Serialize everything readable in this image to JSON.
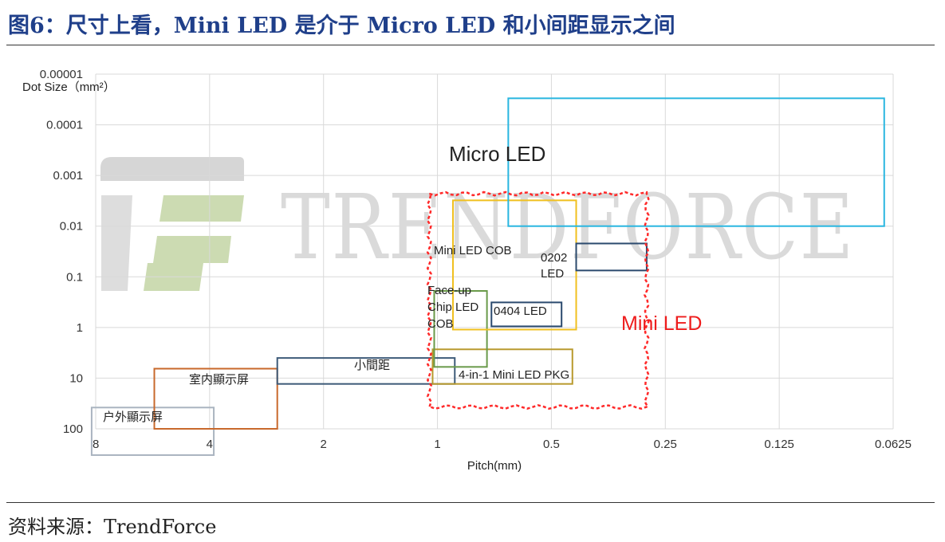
{
  "figure": {
    "title": "图6：尺寸上看，Mini LED 是介于 Micro LED 和小间距显示之间",
    "source": "资料来源：TrendForce"
  },
  "watermark": {
    "text": "TRENDFORCE"
  },
  "chart_data": {
    "type": "range-boxes",
    "xlabel": "Pitch(mm)",
    "ylabel": "Dot Size（mm²）",
    "x_scale": "log2-reversed",
    "y_scale": "log10-reversed",
    "x_ticks": [
      "8",
      "4",
      "2",
      "1",
      "0.5",
      "0.25",
      "0.125",
      "0.0625"
    ],
    "x_tick_values": [
      8,
      4,
      2,
      1,
      0.5,
      0.25,
      0.125,
      0.0625
    ],
    "y_ticks": [
      "0.00001",
      "0.0001",
      "0.001",
      "0.01",
      "0.1",
      "1",
      "10",
      "100"
    ],
    "y_tick_values": [
      1e-05,
      0.0001,
      0.001,
      0.01,
      0.1,
      1,
      10,
      100
    ],
    "xlim": [
      8,
      0.0625
    ],
    "ylim": [
      1e-05,
      100
    ],
    "grid": true,
    "regions": [
      {
        "name": "户外顯示屏",
        "x": [
          8.2,
          3.9
        ],
        "y": [
          38,
          330
        ],
        "color": "#aab4c0",
        "style": "solid"
      },
      {
        "name": "室内顯示屏",
        "x": [
          5.6,
          2.65
        ],
        "y": [
          6.5,
          100
        ],
        "color": "#c8692c",
        "style": "solid"
      },
      {
        "name": "小間距",
        "x": [
          2.65,
          0.9
        ],
        "y": [
          4,
          13
        ],
        "color": "#3d5a78",
        "style": "solid"
      },
      {
        "name": "4-in-1 Mini LED PKG",
        "x": [
          1.03,
          0.44
        ],
        "y": [
          2.7,
          13
        ],
        "color": "#b89a2d",
        "style": "solid"
      },
      {
        "name": "Face-up Chip LED COB",
        "x": [
          1.02,
          0.74
        ],
        "y": [
          0.19,
          6
        ],
        "color": "#6a9a4a",
        "style": "solid"
      },
      {
        "name": "Mini LED COB",
        "x": [
          0.91,
          0.43
        ],
        "y": [
          0.0031,
          1.1
        ],
        "color": "#f0c020",
        "style": "solid"
      },
      {
        "name": "0202 LED",
        "x": [
          0.43,
          0.28
        ],
        "y": [
          0.022,
          0.075
        ],
        "color": "#2b4a6e",
        "style": "solid"
      },
      {
        "name": "0404 LED",
        "x": [
          0.72,
          0.47
        ],
        "y": [
          0.32,
          0.95
        ],
        "color": "#2b4a6e",
        "style": "solid"
      },
      {
        "name": "Micro LED",
        "x": [
          0.65,
          0.066
        ],
        "y": [
          3e-05,
          0.01
        ],
        "color": "#29b6e0",
        "style": "solid"
      },
      {
        "name": "Mini LED",
        "x": [
          1.05,
          0.28
        ],
        "y": [
          0.0023,
          37
        ],
        "color": "#ff2a2a",
        "style": "dashed"
      }
    ]
  }
}
